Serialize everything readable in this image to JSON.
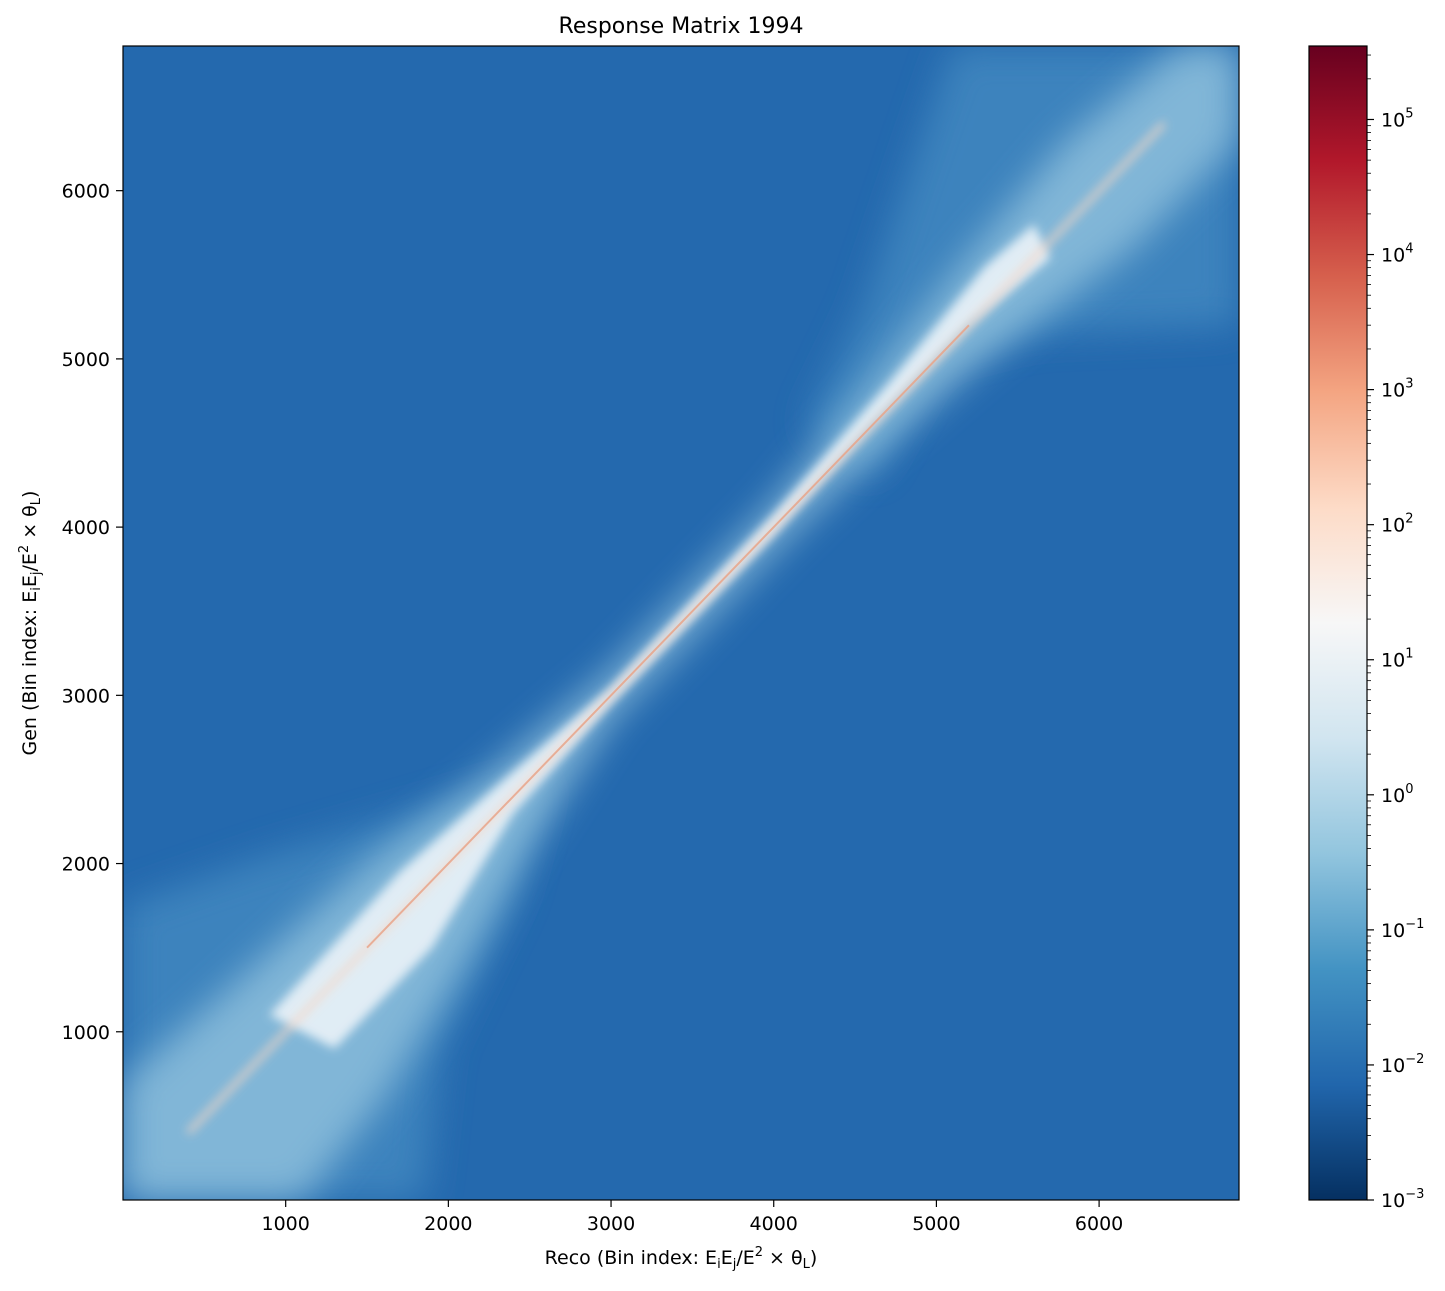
{
  "chart_data": {
    "type": "heatmap",
    "title": "Response Matrix 1994",
    "xlabel": {
      "prefix": "Reco (Bin index: E",
      "sub1": "i",
      "mid1": "E",
      "sub2": "j",
      "mid2": "/E",
      "sup": "2",
      "mid3": " × θ",
      "sub3": "L",
      "suffix": ")"
    },
    "ylabel": {
      "prefix": "Gen (Bin index: E",
      "sub1": "i",
      "mid1": "E",
      "sub2": "j",
      "mid2": "/E",
      "sup": "2",
      "mid3": " × θ",
      "sub3": "L",
      "suffix": ")"
    },
    "xlim": [
      0,
      6860
    ],
    "ylim": [
      0,
      6860
    ],
    "x_ticks": [
      "1000",
      "2000",
      "3000",
      "4000",
      "5000",
      "6000"
    ],
    "y_ticks": [
      "1000",
      "2000",
      "3000",
      "4000",
      "5000",
      "6000"
    ],
    "colorscale": "RdBu_r",
    "color_scale_type": "log",
    "color_range": [
      0.001,
      350000
    ],
    "colorbar_ticks": [
      {
        "base": "10",
        "exp": "−3",
        "value": 0.001
      },
      {
        "base": "10",
        "exp": "−2",
        "value": 0.01
      },
      {
        "base": "10",
        "exp": "−1",
        "value": 0.1
      },
      {
        "base": "10",
        "exp": "0",
        "value": 1
      },
      {
        "base": "10",
        "exp": "1",
        "value": 10
      },
      {
        "base": "10",
        "exp": "2",
        "value": 100
      },
      {
        "base": "10",
        "exp": "3",
        "value": 1000
      },
      {
        "base": "10",
        "exp": "4",
        "value": 10000
      },
      {
        "base": "10",
        "exp": "5",
        "value": 100000
      }
    ],
    "structure": {
      "background_value": 0.01,
      "diagonal_peak_value": 3000,
      "band_regions": [
        {
          "x": [
            0,
            2300
          ],
          "y": [
            0,
            2300
          ],
          "value": 0.05
        },
        {
          "x": [
            5000,
            6860
          ],
          "y": [
            5000,
            6860
          ],
          "value": 0.05
        }
      ]
    }
  },
  "colors": {
    "background_blue": "#2469ae",
    "text": "#000000"
  }
}
